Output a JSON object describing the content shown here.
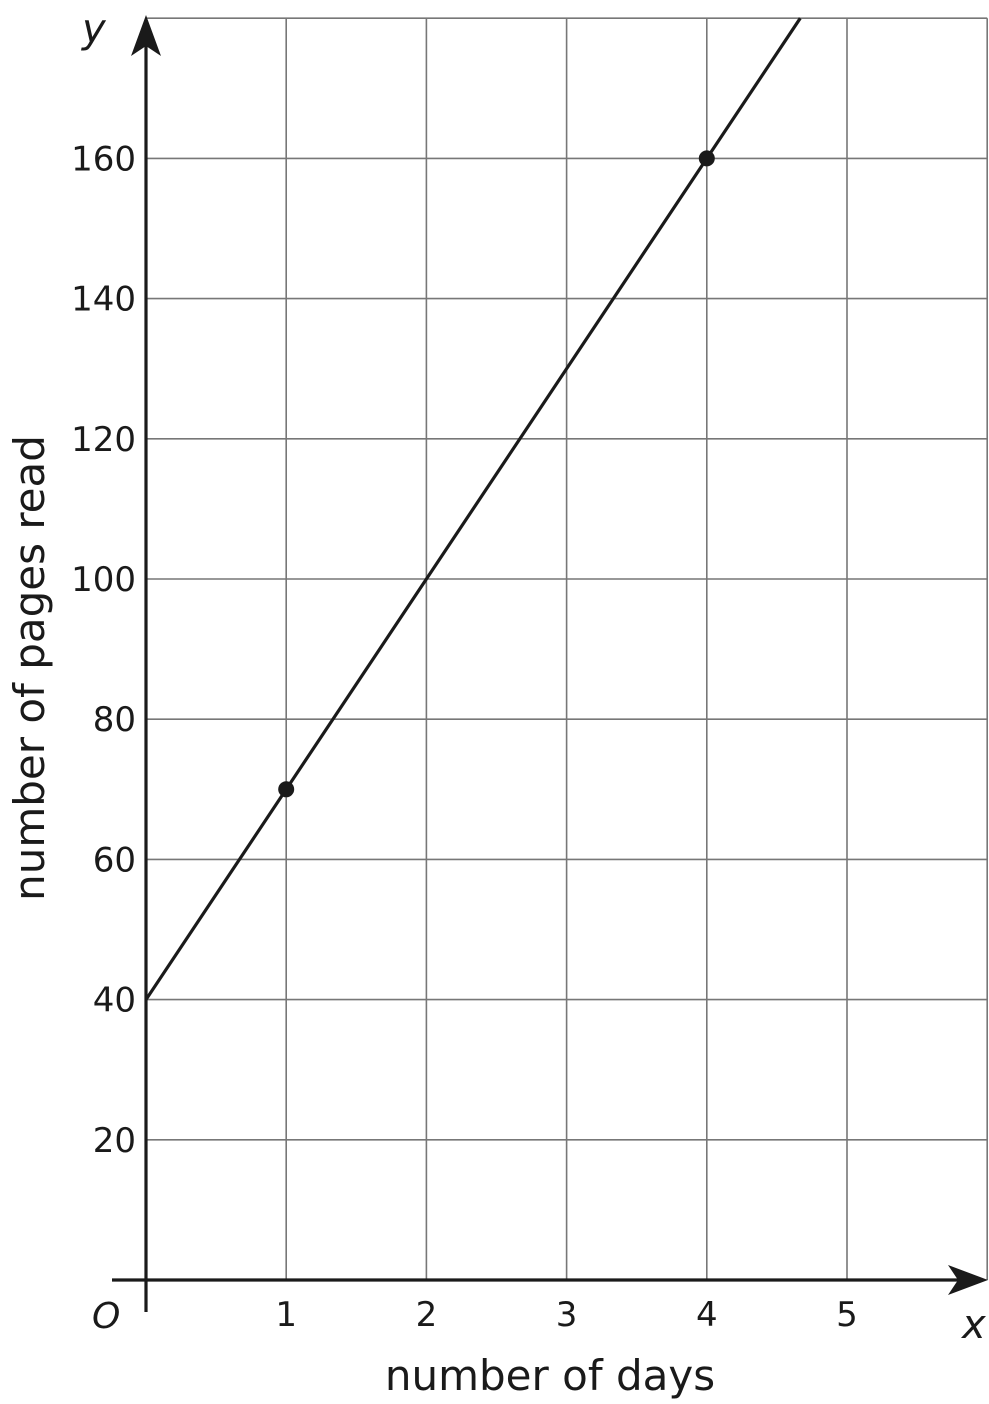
{
  "chart_data": {
    "type": "line",
    "xlabel": "number of days",
    "ylabel": "number of pages read",
    "x_axis_var": "x",
    "y_axis_var": "y",
    "origin_label": "O",
    "xlim": [
      0,
      6
    ],
    "ylim": [
      0,
      180
    ],
    "x_ticks": [
      "1",
      "2",
      "3",
      "4",
      "5"
    ],
    "y_ticks": [
      "20",
      "40",
      "60",
      "80",
      "100",
      "120",
      "140",
      "160"
    ],
    "grid": true,
    "line": {
      "slope": 30,
      "intercept": 40
    },
    "points": [
      {
        "x": 1,
        "y": 70
      },
      {
        "x": 4,
        "y": 160
      }
    ],
    "color": "#1a1a1a"
  }
}
